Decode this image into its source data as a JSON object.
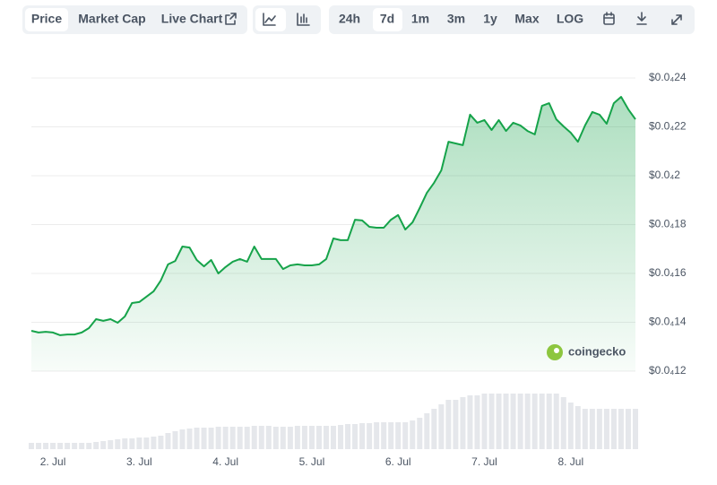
{
  "toolbar": {
    "tabs": [
      "Price",
      "Market Cap",
      "Live Chart"
    ],
    "ranges": [
      "24h",
      "7d",
      "1m",
      "3m",
      "1y",
      "Max",
      "LOG"
    ]
  },
  "watermark": "coingecko",
  "chart_data": {
    "type": "area",
    "x": [
      0,
      2,
      4,
      6,
      8,
      10,
      12,
      14,
      16,
      18,
      20,
      22,
      24,
      26,
      28,
      30,
      32,
      34,
      36,
      38,
      40,
      42,
      44,
      46,
      48,
      50,
      52,
      54,
      56,
      58,
      60,
      62,
      64,
      66,
      68,
      70,
      72,
      74,
      76,
      78,
      80,
      82,
      84,
      86,
      88,
      90,
      92,
      94,
      96,
      98,
      100,
      102,
      104,
      106,
      108,
      110,
      112,
      114,
      116,
      118,
      120,
      122,
      124,
      126,
      128,
      130,
      132,
      134,
      136,
      138,
      140,
      142,
      144,
      146,
      148,
      150,
      152,
      154,
      156,
      158,
      160,
      162,
      164,
      166,
      168
    ],
    "xlim": [
      0,
      168
    ],
    "xticks": [
      {
        "value": 6,
        "label": "2. Jul"
      },
      {
        "value": 30,
        "label": "3. Jul"
      },
      {
        "value": 54,
        "label": "4. Jul"
      },
      {
        "value": 78,
        "label": "5. Jul"
      },
      {
        "value": 102,
        "label": "6. Jul"
      },
      {
        "value": 126,
        "label": "7. Jul"
      },
      {
        "value": 150,
        "label": "8. Jul"
      }
    ],
    "ylim": [
      1.2e-05,
      2.4e-05
    ],
    "yticks": [
      {
        "value": 2.4e-05,
        "label": "$0.0₄24"
      },
      {
        "value": 2.2e-05,
        "label": "$0.0₄22"
      },
      {
        "value": 2e-05,
        "label": "$0.0₄2"
      },
      {
        "value": 1.8e-05,
        "label": "$0.0₄18"
      },
      {
        "value": 1.6e-05,
        "label": "$0.0₄16"
      },
      {
        "value": 1.4e-05,
        "label": "$0.0₄14"
      },
      {
        "value": 1.2e-05,
        "label": "$0.0₄12"
      }
    ],
    "grid": true,
    "series": [
      {
        "color": "#16a34a",
        "values": [
          1.365e-05,
          1.358e-05,
          1.361e-05,
          1.358e-05,
          1.347e-05,
          1.35e-05,
          1.35e-05,
          1.358e-05,
          1.376e-05,
          1.413e-05,
          1.406e-05,
          1.413e-05,
          1.398e-05,
          1.424e-05,
          1.479e-05,
          1.483e-05,
          1.505e-05,
          1.527e-05,
          1.571e-05,
          1.637e-05,
          1.651e-05,
          1.71e-05,
          1.706e-05,
          1.655e-05,
          1.629e-05,
          1.655e-05,
          1.6e-05,
          1.626e-05,
          1.648e-05,
          1.659e-05,
          1.648e-05,
          1.71e-05,
          1.659e-05,
          1.659e-05,
          1.659e-05,
          1.618e-05,
          1.633e-05,
          1.637e-05,
          1.633e-05,
          1.633e-05,
          1.637e-05,
          1.659e-05,
          1.743e-05,
          1.736e-05,
          1.736e-05,
          1.82e-05,
          1.817e-05,
          1.791e-05,
          1.787e-05,
          1.787e-05,
          1.82e-05,
          1.839e-05,
          1.78e-05,
          1.809e-05,
          1.868e-05,
          1.93e-05,
          1.971e-05,
          2.022e-05,
          2.139e-05,
          2.132e-05,
          2.125e-05,
          2.25e-05,
          2.217e-05,
          2.228e-05,
          2.187e-05,
          2.228e-05,
          2.183e-05,
          2.217e-05,
          2.206e-05,
          2.183e-05,
          2.169e-05,
          2.286e-05,
          2.297e-05,
          2.231e-05,
          2.202e-05,
          2.176e-05,
          2.139e-05,
          2.206e-05,
          2.261e-05,
          2.25e-05,
          2.213e-05,
          2.297e-05,
          2.323e-05,
          2.272e-05,
          2.231e-05
        ]
      }
    ],
    "volume": {
      "ylim": [
        0,
        70
      ],
      "values": [
        7,
        7,
        7,
        7,
        7,
        7,
        7,
        7,
        7,
        8,
        9,
        10,
        11,
        12,
        12,
        13,
        13,
        14,
        15,
        18,
        20,
        22,
        23,
        24,
        24,
        24,
        25,
        25,
        25,
        25,
        25,
        26,
        26,
        26,
        25,
        25,
        25,
        26,
        26,
        26,
        26,
        26,
        26,
        27,
        28,
        28,
        29,
        29,
        30,
        30,
        30,
        30,
        30,
        32,
        35,
        40,
        45,
        50,
        55,
        55,
        58,
        60,
        60,
        62,
        62,
        62,
        62,
        62,
        62,
        62,
        62,
        62,
        62,
        62,
        58,
        52,
        48,
        45,
        45,
        45,
        45,
        45,
        45,
        45,
        45
      ]
    }
  }
}
